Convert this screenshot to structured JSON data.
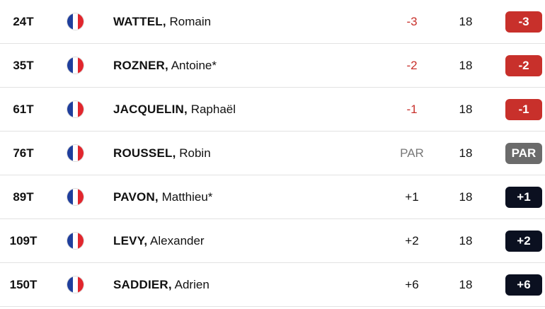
{
  "table": {
    "rows": [
      [
        "24T",
        "WATTEL,",
        "Romain",
        "-3",
        "18",
        "-3"
      ],
      [
        "35T",
        "ROZNER,",
        "Antoine*",
        "-2",
        "18",
        "-2"
      ],
      [
        "61T",
        "JACQUELIN,",
        "Raphaël",
        "-1",
        "18",
        "-1"
      ],
      [
        "76T",
        "ROUSSEL,",
        "Robin",
        "PAR",
        "18",
        "PAR"
      ],
      [
        "89T",
        "PAVON,",
        "Matthieu*",
        "+1",
        "18",
        "+1"
      ],
      [
        "109T",
        "LEVY,",
        "Alexander",
        "+2",
        "18",
        "+2"
      ],
      [
        "150T",
        "SADDIER,",
        "Adrien",
        "+6",
        "18",
        "+6"
      ]
    ]
  }
}
